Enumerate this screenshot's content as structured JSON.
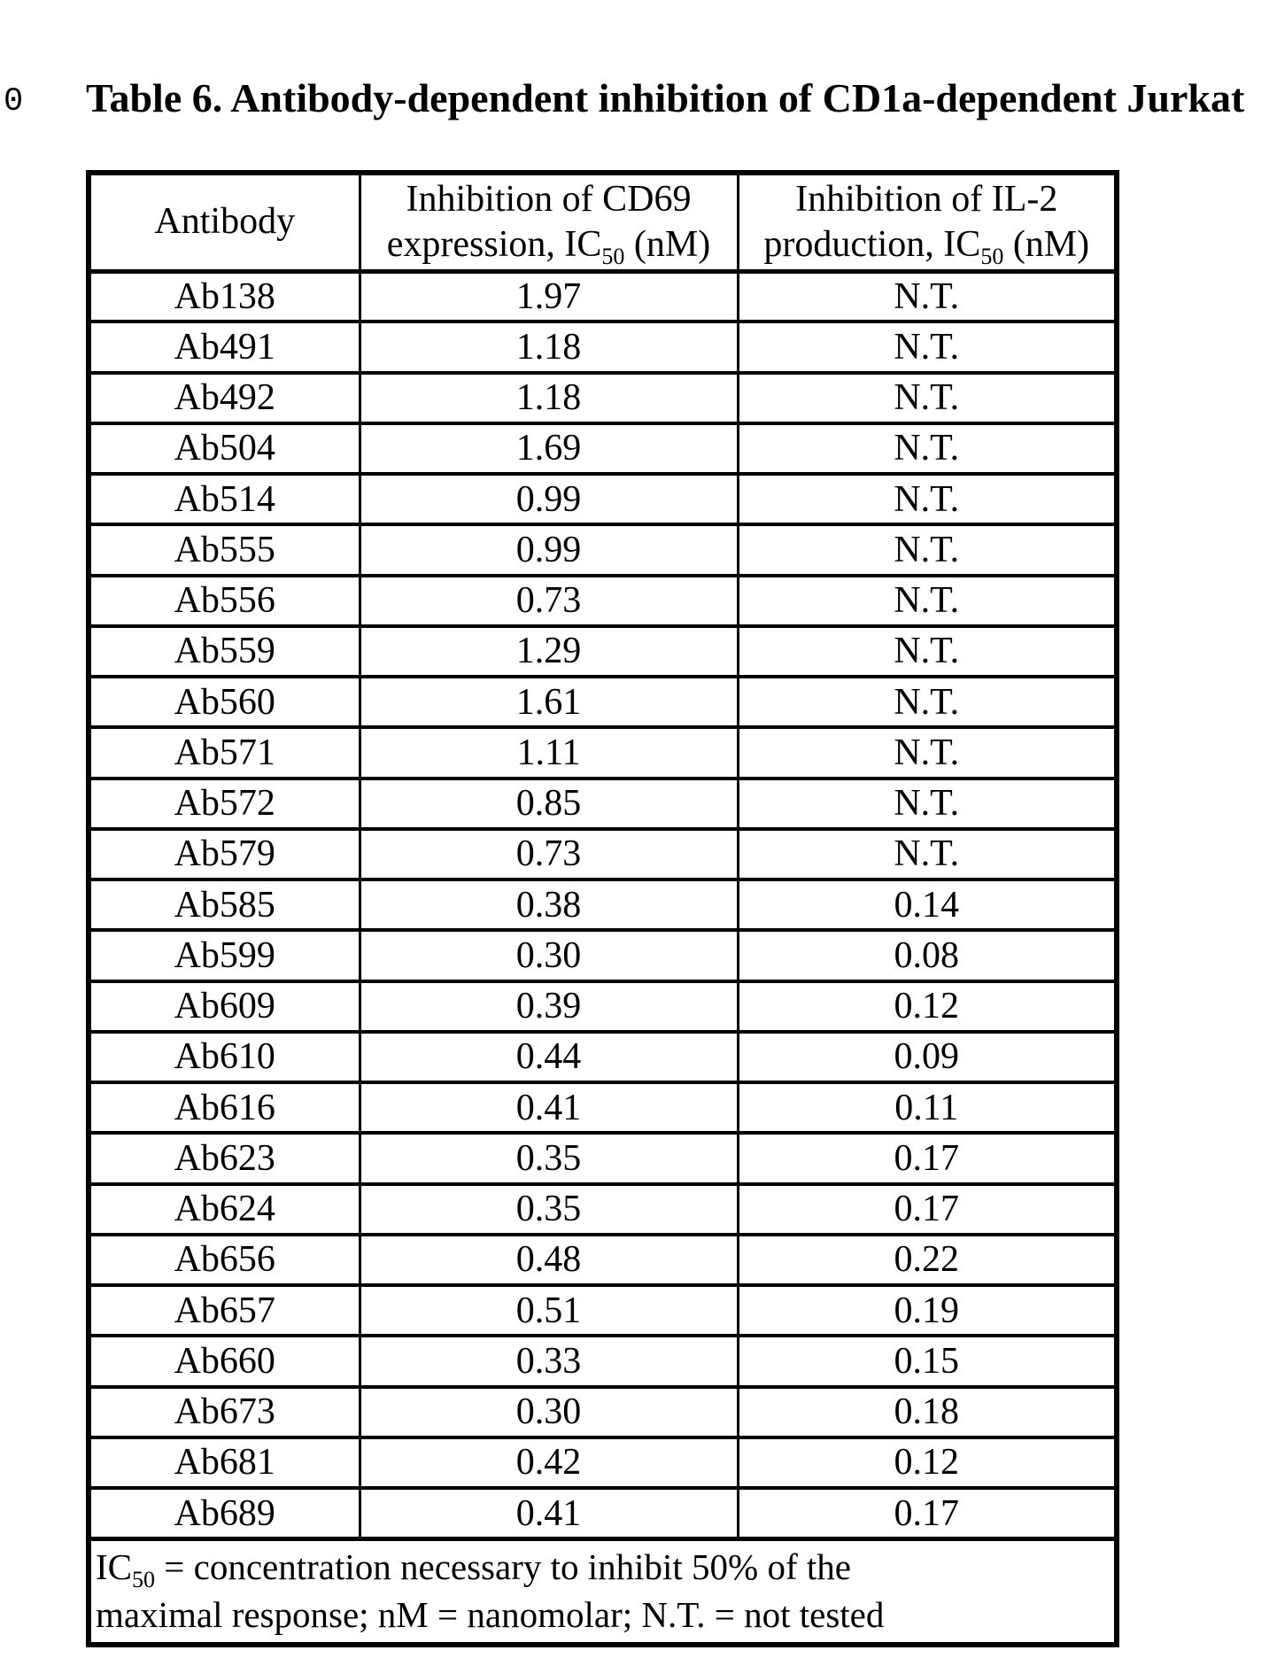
{
  "page": {
    "margin_marker": "0",
    "title": "Table 6. Antibody-dependent inhibition of CD1a-dependent Jurkat"
  },
  "table": {
    "header": {
      "antibody": "Antibody",
      "cd69_line1": "Inhibition of CD69",
      "cd69_line2_pre": "expression, IC",
      "cd69_sub": "50",
      "cd69_line2_post": " (nM)",
      "il2_line1": "Inhibition of IL-2",
      "il2_line2_pre": "production, IC",
      "il2_sub": "50",
      "il2_line2_post": " (nM)"
    },
    "rows": [
      {
        "antibody": "Ab138",
        "cd69": "1.97",
        "il2": "N.T."
      },
      {
        "antibody": "Ab491",
        "cd69": "1.18",
        "il2": "N.T."
      },
      {
        "antibody": "Ab492",
        "cd69": "1.18",
        "il2": "N.T."
      },
      {
        "antibody": "Ab504",
        "cd69": "1.69",
        "il2": "N.T."
      },
      {
        "antibody": "Ab514",
        "cd69": "0.99",
        "il2": "N.T."
      },
      {
        "antibody": "Ab555",
        "cd69": "0.99",
        "il2": "N.T."
      },
      {
        "antibody": "Ab556",
        "cd69": "0.73",
        "il2": "N.T."
      },
      {
        "antibody": "Ab559",
        "cd69": "1.29",
        "il2": "N.T."
      },
      {
        "antibody": "Ab560",
        "cd69": "1.61",
        "il2": "N.T."
      },
      {
        "antibody": "Ab571",
        "cd69": "1.11",
        "il2": "N.T."
      },
      {
        "antibody": "Ab572",
        "cd69": "0.85",
        "il2": "N.T."
      },
      {
        "antibody": "Ab579",
        "cd69": "0.73",
        "il2": "N.T."
      },
      {
        "antibody": "Ab585",
        "cd69": "0.38",
        "il2": "0.14"
      },
      {
        "antibody": "Ab599",
        "cd69": "0.30",
        "il2": "0.08"
      },
      {
        "antibody": "Ab609",
        "cd69": "0.39",
        "il2": "0.12"
      },
      {
        "antibody": "Ab610",
        "cd69": "0.44",
        "il2": "0.09"
      },
      {
        "antibody": "Ab616",
        "cd69": "0.41",
        "il2": "0.11"
      },
      {
        "antibody": "Ab623",
        "cd69": "0.35",
        "il2": "0.17"
      },
      {
        "antibody": "Ab624",
        "cd69": "0.35",
        "il2": "0.17"
      },
      {
        "antibody": "Ab656",
        "cd69": "0.48",
        "il2": "0.22"
      },
      {
        "antibody": "Ab657",
        "cd69": "0.51",
        "il2": "0.19"
      },
      {
        "antibody": "Ab660",
        "cd69": "0.33",
        "il2": "0.15"
      },
      {
        "antibody": "Ab673",
        "cd69": "0.30",
        "il2": "0.18"
      },
      {
        "antibody": "Ab681",
        "cd69": "0.42",
        "il2": "0.12"
      },
      {
        "antibody": "Ab689",
        "cd69": "0.41",
        "il2": "0.17"
      }
    ],
    "footnote": {
      "line1_pre": "IC",
      "sub": "50",
      "line1_post": " = concentration necessary to inhibit 50% of the",
      "line2": "maximal response; nM = nanomolar; N.T. = not tested"
    }
  }
}
